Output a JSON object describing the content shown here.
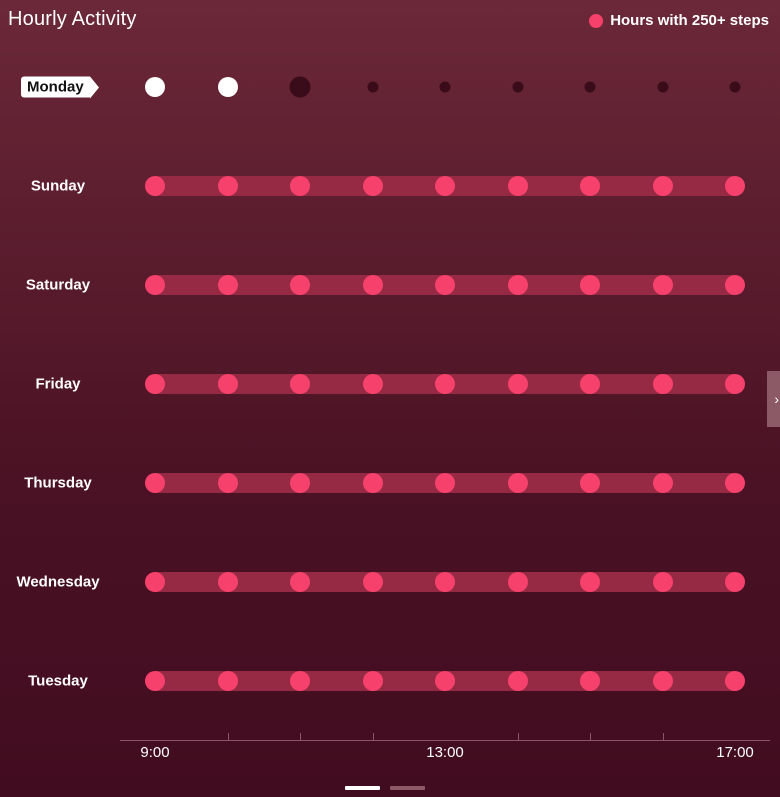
{
  "header": {
    "title": "Hourly Activity",
    "legend_label": "Hours with 250+ steps",
    "legend_icon": "pink-dot-icon"
  },
  "colors": {
    "accent": "#f5416c",
    "bar": "#962a44",
    "current_hit": "#ffffff",
    "current_miss": "#3a0b18"
  },
  "current_day": {
    "label": "Monday",
    "hours": [
      {
        "hour": "9:00",
        "status": "hit"
      },
      {
        "hour": "10:00",
        "status": "hit"
      },
      {
        "hour": "11:00",
        "status": "current"
      },
      {
        "hour": "12:00",
        "status": "pending"
      },
      {
        "hour": "13:00",
        "status": "pending"
      },
      {
        "hour": "14:00",
        "status": "pending"
      },
      {
        "hour": "15:00",
        "status": "pending"
      },
      {
        "hour": "16:00",
        "status": "pending"
      },
      {
        "hour": "17:00",
        "status": "pending"
      }
    ]
  },
  "days": [
    {
      "label": "Sunday",
      "hits": 9
    },
    {
      "label": "Saturday",
      "hits": 9
    },
    {
      "label": "Friday",
      "hits": 9
    },
    {
      "label": "Thursday",
      "hits": 9
    },
    {
      "label": "Wednesday",
      "hits": 9
    },
    {
      "label": "Tuesday",
      "hits": 9
    }
  ],
  "axis": {
    "labels": [
      "9:00",
      "13:00",
      "17:00"
    ]
  },
  "controls": {
    "next_icon": "chevron-right-icon",
    "next_glyph": "›",
    "pager_active": 0,
    "pager_count": 2
  }
}
